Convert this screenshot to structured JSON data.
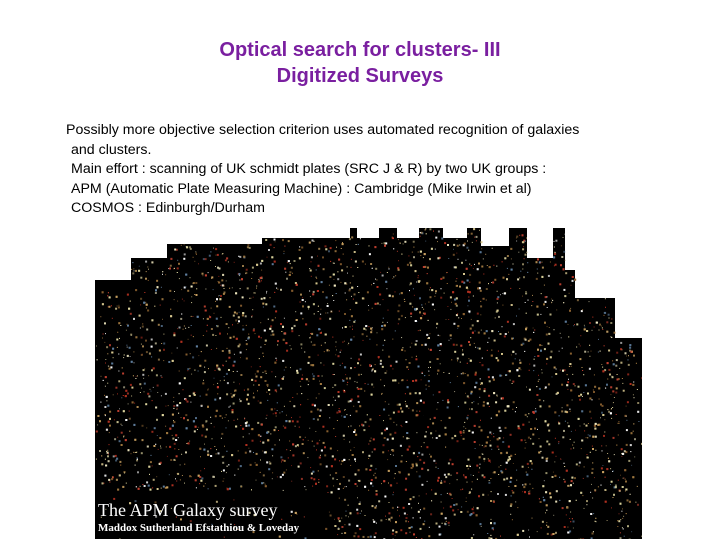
{
  "title": {
    "line1": "Optical search for clusters- III",
    "line2": "Digitized Surveys"
  },
  "body": {
    "line1": "Possibly more objective selection criterion uses automated recognition of galaxies",
    "line2": "and clusters.",
    "line3": "Main effort : scanning of UK schmidt plates (SRC J & R) by two UK groups :",
    "apm_label": "APM",
    "apm_text": " (Automatic Plate Measuring Machine) : Cambridge (Mike Irwin et al)",
    "cosmos_label": "COSMOS",
    "cosmos_text": " : Edinburgh/Durham"
  },
  "image": {
    "caption_title": "The APM Galaxy survey",
    "caption_authors": "Maddox Sutherland Efstathiou & Loveday",
    "colors": [
      "#c8a060",
      "#d8c890",
      "#b03020",
      "#e0d8a0",
      "#8a6030",
      "#f0e8c0",
      "#c04030",
      "#6080a0",
      "#a07840",
      "#ffffff"
    ]
  }
}
